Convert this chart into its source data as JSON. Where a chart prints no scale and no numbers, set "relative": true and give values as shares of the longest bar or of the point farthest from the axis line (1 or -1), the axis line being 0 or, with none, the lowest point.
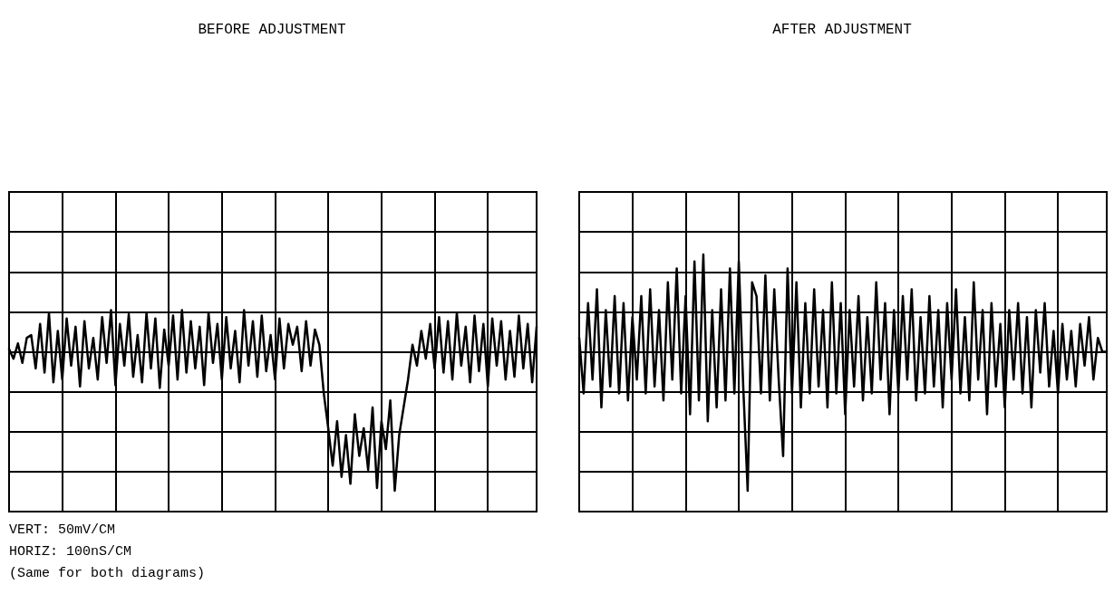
{
  "chart_data": [
    {
      "type": "line",
      "title": "BEFORE ADJUSTMENT",
      "relative": true,
      "grid": true,
      "line_style": "solid",
      "annotations": [
        "VERT: 50mV/CM",
        "HORIZ: 100nS/CM",
        "(Same for both diagrams)"
      ],
      "categories": [
        null,
        null,
        null,
        null,
        null,
        null,
        null,
        null,
        null,
        null,
        null,
        null,
        null,
        null,
        null,
        null,
        null,
        null,
        null,
        null,
        null,
        null,
        null,
        null,
        null,
        null,
        null,
        null,
        null,
        null,
        null,
        null,
        null,
        null,
        null,
        null,
        null,
        null,
        null,
        null,
        null,
        null,
        null,
        null,
        null,
        null,
        null,
        null,
        null,
        null,
        null,
        null,
        null,
        null,
        null,
        null,
        null,
        null,
        null,
        null,
        null,
        null,
        null,
        null,
        null,
        null,
        null,
        null,
        null,
        null,
        null,
        null,
        null,
        null,
        null,
        null,
        null,
        null,
        null,
        null,
        null,
        null,
        null,
        null,
        null,
        null,
        null,
        null,
        null,
        null,
        null,
        null,
        null,
        null,
        null,
        null,
        null,
        null,
        null,
        null,
        null,
        null,
        null,
        null,
        null,
        null,
        null,
        null,
        null,
        null,
        null,
        null,
        null,
        null,
        null,
        null,
        null,
        null,
        null,
        null
      ],
      "series": [
        {
          "color": "#000000",
          "values": [
            0.02,
            -0.05,
            0.06,
            -0.08,
            0.1,
            0.12,
            -0.12,
            0.2,
            -0.15,
            0.28,
            -0.22,
            0.15,
            -0.2,
            0.24,
            -0.1,
            0.18,
            -0.25,
            0.22,
            -0.12,
            0.1,
            -0.2,
            0.25,
            -0.08,
            0.3,
            -0.24,
            0.2,
            -0.1,
            0.27,
            -0.18,
            0.12,
            -0.22,
            0.28,
            -0.12,
            0.24,
            -0.26,
            0.16,
            -0.1,
            0.26,
            -0.2,
            0.3,
            -0.15,
            0.22,
            -0.12,
            0.18,
            -0.24,
            0.28,
            -0.08,
            0.2,
            -0.2,
            0.25,
            -0.12,
            0.15,
            -0.22,
            0.3,
            -0.1,
            0.22,
            -0.18,
            0.26,
            -0.14,
            0.12,
            -0.2,
            0.24,
            -0.12,
            0.2,
            0.05,
            0.18,
            -0.14,
            0.22,
            -0.1,
            0.16,
            0.05,
            -0.3,
            -0.55,
            -0.82,
            -0.5,
            -0.9,
            -0.6,
            -0.95,
            -0.45,
            -0.75,
            -0.55,
            -0.85,
            -0.4,
            -0.98,
            -0.5,
            -0.7,
            -0.35,
            -1,
            -0.6,
            -0.4,
            -0.2,
            0.05,
            -0.1,
            0.15,
            -0.05,
            0.2,
            -0.12,
            0.25,
            -0.15,
            0.22,
            -0.2,
            0.28,
            -0.1,
            0.18,
            -0.22,
            0.26,
            -0.14,
            0.2,
            -0.25,
            0.24,
            -0.1,
            0.22,
            -0.2,
            0.15,
            -0.18,
            0.26,
            -0.12,
            0.2,
            -0.22,
            0.18
          ]
        }
      ]
    },
    {
      "type": "line",
      "title": "AFTER ADJUSTMENT",
      "relative": true,
      "grid": true,
      "line_style": "solid",
      "categories": [
        null,
        null,
        null,
        null,
        null,
        null,
        null,
        null,
        null,
        null,
        null,
        null,
        null,
        null,
        null,
        null,
        null,
        null,
        null,
        null,
        null,
        null,
        null,
        null,
        null,
        null,
        null,
        null,
        null,
        null,
        null,
        null,
        null,
        null,
        null,
        null,
        null,
        null,
        null,
        null,
        null,
        null,
        null,
        null,
        null,
        null,
        null,
        null,
        null,
        null,
        null,
        null,
        null,
        null,
        null,
        null,
        null,
        null,
        null,
        null,
        null,
        null,
        null,
        null,
        null,
        null,
        null,
        null,
        null,
        null,
        null,
        null,
        null,
        null,
        null,
        null,
        null,
        null,
        null,
        null,
        null,
        null,
        null,
        null,
        null,
        null,
        null,
        null,
        null,
        null,
        null,
        null,
        null,
        null,
        null,
        null,
        null,
        null,
        null,
        null,
        null,
        null,
        null,
        null,
        null,
        null,
        null,
        null,
        null,
        null,
        null,
        null,
        null,
        null,
        null,
        null,
        null,
        null,
        null,
        null
      ],
      "series": [
        {
          "color": "#000000",
          "values": [
            0.1,
            -0.3,
            0.35,
            -0.2,
            0.45,
            -0.4,
            0.3,
            -0.25,
            0.4,
            -0.3,
            0.35,
            -0.35,
            0.25,
            -0.2,
            0.4,
            -0.3,
            0.45,
            -0.25,
            0.3,
            -0.35,
            0.5,
            -0.2,
            0.6,
            -0.3,
            0.4,
            -0.45,
            0.65,
            -0.35,
            0.7,
            -0.5,
            0.3,
            -0.4,
            0.45,
            -0.35,
            0.6,
            -0.3,
            0.65,
            -0.25,
            -1,
            0.5,
            0.4,
            -0.3,
            0.55,
            -0.35,
            0.45,
            -0.2,
            -0.75,
            0.6,
            -0.3,
            0.5,
            -0.4,
            0.35,
            -0.3,
            0.45,
            -0.25,
            0.3,
            -0.4,
            0.5,
            -0.3,
            0.35,
            -0.45,
            0.3,
            -0.25,
            0.4,
            -0.35,
            0.25,
            -0.3,
            0.5,
            -0.2,
            0.35,
            -0.45,
            0.3,
            -0.3,
            0.4,
            -0.2,
            0.45,
            -0.35,
            0.25,
            -0.3,
            0.4,
            -0.25,
            0.3,
            -0.4,
            0.35,
            -0.2,
            0.45,
            -0.3,
            0.25,
            -0.35,
            0.5,
            -0.2,
            0.3,
            -0.45,
            0.35,
            -0.25,
            0.2,
            -0.4,
            0.3,
            -0.2,
            0.35,
            -0.3,
            0.25,
            -0.4,
            0.3,
            -0.15,
            0.35,
            -0.25,
            0.15,
            -0.3,
            0.2,
            -0.2,
            0.15,
            -0.25,
            0.2,
            -0.1,
            0.25,
            -0.2,
            0.1,
            0,
            0
          ]
        }
      ]
    }
  ]
}
